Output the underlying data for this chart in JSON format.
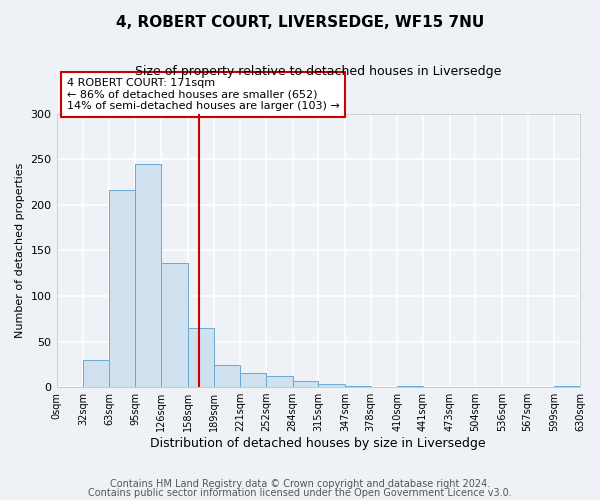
{
  "title": "4, ROBERT COURT, LIVERSEDGE, WF15 7NU",
  "subtitle": "Size of property relative to detached houses in Liversedge",
  "xlabel": "Distribution of detached houses by size in Liversedge",
  "ylabel": "Number of detached properties",
  "bin_edges": [
    0,
    32,
    63,
    95,
    126,
    158,
    189,
    221,
    252,
    284,
    315,
    347,
    378,
    410,
    441,
    473,
    504,
    536,
    567,
    599,
    630
  ],
  "bin_counts": [
    0,
    30,
    216,
    245,
    136,
    65,
    24,
    16,
    12,
    7,
    3,
    1,
    0,
    1,
    0,
    0,
    0,
    0,
    0,
    1
  ],
  "bar_facecolor": "#cfe0ef",
  "bar_edgecolor": "#6aaad4",
  "vline_x": 171,
  "vline_color": "#cc0000",
  "annotation_box_text": "4 ROBERT COURT: 171sqm\n← 86% of detached houses are smaller (652)\n14% of semi-detached houses are larger (103) →",
  "annotation_box_facecolor": "white",
  "annotation_box_edgecolor": "#cc0000",
  "tick_labels": [
    "0sqm",
    "32sqm",
    "63sqm",
    "95sqm",
    "126sqm",
    "158sqm",
    "189sqm",
    "221sqm",
    "252sqm",
    "284sqm",
    "315sqm",
    "347sqm",
    "378sqm",
    "410sqm",
    "441sqm",
    "473sqm",
    "504sqm",
    "536sqm",
    "567sqm",
    "599sqm",
    "630sqm"
  ],
  "ylim": [
    0,
    300
  ],
  "yticks": [
    0,
    50,
    100,
    150,
    200,
    250,
    300
  ],
  "background_color": "#eef2f7",
  "grid_color": "white",
  "footer_line1": "Contains HM Land Registry data © Crown copyright and database right 2024.",
  "footer_line2": "Contains public sector information licensed under the Open Government Licence v3.0.",
  "title_fontsize": 11,
  "subtitle_fontsize": 9,
  "footer_fontsize": 7
}
